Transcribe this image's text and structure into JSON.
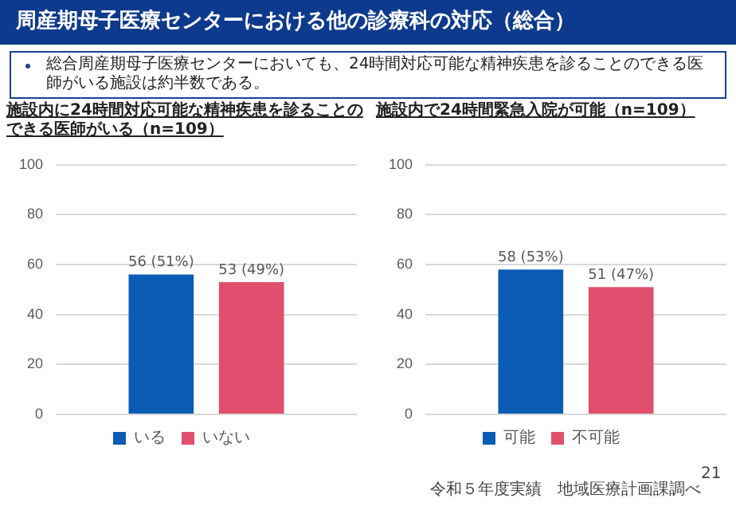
{
  "chart_data": [
    {
      "type": "other",
      "title": "周産期母子医療センターにおける他の診療科の対応（総合）",
      "annotations": [
        "総合周産期母子医療センターにおいても、24時間対応可能な精神疾患を診ることのできる医師がいる施設は約半数である。",
        "令和５年度実績　地域医療計画課調べ",
        "21"
      ]
    },
    {
      "type": "bar",
      "title": "施設内に24時間対応可能な精神疾患を診ることのできる医師がいる（n=109）",
      "categories": [
        null
      ],
      "series": [
        {
          "name": "いる",
          "color": "#0b5cb5",
          "values": [
            56
          ],
          "value_labels": [
            "56 (51%)"
          ]
        },
        {
          "name": "いない",
          "color": "#e0506e",
          "values": [
            53
          ],
          "value_labels": [
            "53 (49%)"
          ]
        }
      ],
      "ylim": [
        0,
        100
      ],
      "yticks": [
        0,
        20,
        40,
        60,
        80,
        100
      ],
      "grid": "y",
      "legend": "bottom"
    },
    {
      "type": "bar",
      "title": "施設内で24時間緊急入院が可能（n=109）",
      "categories": [
        null
      ],
      "series": [
        {
          "name": "可能",
          "color": "#0b5cb5",
          "values": [
            58
          ],
          "value_labels": [
            "58 (53%)"
          ]
        },
        {
          "name": "不可能",
          "color": "#e0506e",
          "values": [
            51
          ],
          "value_labels": [
            "51 (47%)"
          ]
        }
      ],
      "ylim": [
        0,
        100
      ],
      "yticks": [
        0,
        20,
        40,
        60,
        80,
        100
      ],
      "grid": "y",
      "legend": "bottom"
    }
  ]
}
